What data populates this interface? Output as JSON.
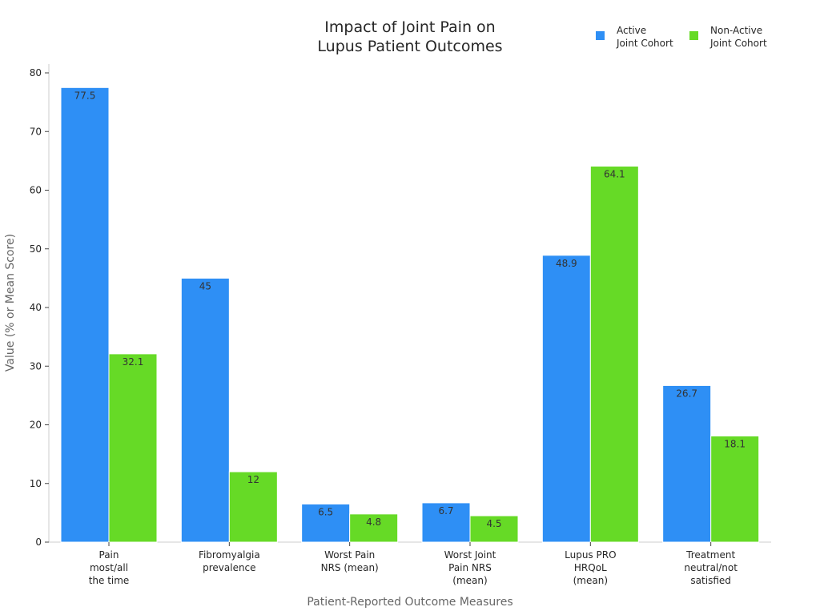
{
  "chart_data": {
    "type": "bar",
    "title": "Impact of Joint Pain on\nLupus Patient Outcomes",
    "xlabel": "Patient-Reported Outcome Measures",
    "ylabel": "Value (% or Mean Score)",
    "ylim": [
      0,
      80
    ],
    "yticks": [
      0,
      10,
      20,
      30,
      40,
      50,
      60,
      70,
      80
    ],
    "grid": false,
    "legend_position": "top-right",
    "categories": [
      "Pain\nmost/all\nthe time",
      "Fibromyalgia\nprevalence",
      "Worst Pain\nNRS (mean)",
      "Worst Joint\nPain NRS\n(mean)",
      "Lupus PRO\nHRQoL\n(mean)",
      "Treatment\nneutral/not\nsatisfied"
    ],
    "series": [
      {
        "name": "Active\nJoint Cohort",
        "color": "#2E8FF5",
        "values": [
          77.5,
          45,
          6.5,
          6.7,
          48.9,
          26.7
        ],
        "labels": [
          "77.5",
          "45",
          "6.5",
          "6.7",
          "48.9",
          "26.7"
        ]
      },
      {
        "name": "Non-Active\nJoint Cohort",
        "color": "#66DA26",
        "values": [
          32.1,
          12,
          4.8,
          4.5,
          64.1,
          18.1
        ],
        "labels": [
          "32.1",
          "12",
          "4.8",
          "4.5",
          "64.1",
          "18.1"
        ]
      }
    ]
  }
}
